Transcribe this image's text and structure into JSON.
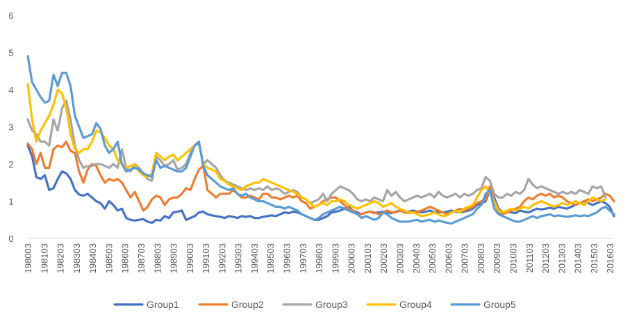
{
  "chart_data": {
    "type": "line",
    "title": "",
    "xlabel": "",
    "ylabel": "",
    "ylim": [
      0,
      6
    ],
    "yticks": [
      0,
      1,
      2,
      3,
      4,
      5,
      6
    ],
    "grid": false,
    "legend_position": "bottom",
    "x_tick_labels": [
      "198003",
      "198103",
      "198203",
      "198303",
      "198403",
      "198503",
      "198603",
      "198703",
      "198803",
      "198903",
      "199003",
      "199103",
      "199203",
      "199303",
      "199403",
      "199503",
      "199603",
      "199703",
      "199803",
      "199903",
      "200003",
      "200103",
      "200203",
      "200303",
      "200403",
      "200503",
      "200603",
      "200703",
      "200803",
      "200903",
      "201003",
      "201103",
      "201203",
      "201303",
      "201403",
      "201503",
      "201603"
    ],
    "series": [
      {
        "name": "Group1",
        "color": "#4472C4",
        "values": [
          2.5,
          2.2,
          1.65,
          1.6,
          1.7,
          1.3,
          1.35,
          1.6,
          1.8,
          1.75,
          1.6,
          1.3,
          1.18,
          1.15,
          1.2,
          1.1,
          1.0,
          0.95,
          0.8,
          1.0,
          0.9,
          0.75,
          0.8,
          0.55,
          0.5,
          0.48,
          0.5,
          0.52,
          0.45,
          0.42,
          0.5,
          0.48,
          0.6,
          0.55,
          0.7,
          0.72,
          0.75,
          0.5,
          0.55,
          0.6,
          0.7,
          0.72,
          0.65,
          0.62,
          0.6,
          0.58,
          0.55,
          0.6,
          0.58,
          0.55,
          0.6,
          0.58,
          0.6,
          0.55,
          0.55,
          0.58,
          0.6,
          0.62,
          0.6,
          0.65,
          0.7,
          0.68,
          0.72,
          0.7,
          0.65,
          0.6,
          0.55,
          0.5,
          0.5,
          0.55,
          0.6,
          0.7,
          0.72,
          0.75,
          0.8,
          0.85,
          0.75,
          0.7,
          0.65,
          0.7,
          0.72,
          0.68,
          0.7,
          0.72,
          0.7,
          0.68,
          0.72,
          0.75,
          0.7,
          0.72,
          0.75,
          0.72,
          0.7,
          0.72,
          0.75,
          0.7,
          0.72,
          0.7,
          0.72,
          0.75,
          0.72,
          0.7,
          0.72,
          0.75,
          0.8,
          0.9,
          0.95,
          1.0,
          1.3,
          1.1,
          0.8,
          0.7,
          0.72,
          0.7,
          0.68,
          0.75,
          0.72,
          0.7,
          0.75,
          0.8,
          0.78,
          0.8,
          0.82,
          0.8,
          0.85,
          0.82,
          0.8,
          0.85,
          0.9,
          0.95,
          1.0,
          0.95,
          0.9,
          0.95,
          1.0,
          0.95,
          0.85,
          0.6
        ]
      },
      {
        "name": "Group2",
        "color": "#ED7D31",
        "values": [
          2.55,
          2.4,
          2.0,
          2.3,
          1.9,
          1.9,
          2.4,
          2.5,
          2.45,
          2.6,
          2.35,
          2.3,
          1.8,
          1.5,
          1.85,
          2.0,
          1.95,
          1.7,
          1.5,
          1.6,
          1.55,
          1.6,
          1.5,
          1.3,
          1.1,
          1.25,
          1.0,
          0.75,
          0.85,
          1.05,
          1.15,
          1.1,
          0.9,
          1.05,
          1.1,
          1.1,
          1.2,
          1.35,
          1.3,
          1.6,
          1.85,
          1.95,
          1.3,
          1.2,
          1.1,
          1.2,
          1.2,
          1.2,
          1.3,
          1.2,
          1.1,
          1.1,
          1.15,
          1.1,
          1.05,
          1.2,
          1.2,
          1.1,
          1.1,
          1.05,
          1.1,
          1.15,
          1.1,
          1.15,
          1.0,
          0.95,
          0.8,
          0.85,
          0.9,
          1.0,
          1.05,
          1.1,
          1.1,
          1.0,
          0.9,
          0.8,
          0.75,
          0.65,
          0.65,
          0.7,
          0.72,
          0.7,
          0.65,
          0.7,
          0.75,
          0.7,
          0.7,
          0.75,
          0.7,
          0.68,
          0.7,
          0.72,
          0.75,
          0.8,
          0.85,
          0.8,
          0.75,
          0.7,
          0.65,
          0.7,
          0.75,
          0.8,
          0.75,
          0.8,
          0.85,
          0.95,
          1.0,
          1.05,
          1.4,
          1.0,
          0.7,
          0.65,
          0.7,
          0.75,
          0.8,
          0.85,
          1.0,
          1.1,
          1.05,
          1.15,
          1.2,
          1.15,
          1.2,
          1.1,
          1.15,
          1.1,
          1.0,
          0.95,
          0.9,
          0.95,
          1.0,
          1.05,
          1.0,
          1.05,
          1.1,
          1.2,
          1.15,
          1.0
        ]
      },
      {
        "name": "Group3",
        "color": "#A5A5A5",
        "values": [
          3.2,
          2.9,
          2.8,
          2.6,
          2.6,
          2.5,
          3.2,
          2.9,
          3.5,
          3.7,
          3.2,
          2.5,
          2.1,
          1.9,
          1.95,
          1.95,
          2.0,
          2.0,
          1.95,
          1.9,
          2.0,
          1.9,
          2.4,
          1.9,
          1.8,
          2.0,
          1.9,
          1.75,
          1.6,
          1.55,
          2.2,
          2.1,
          1.95,
          2.0,
          2.1,
          1.85,
          1.9,
          2.0,
          2.3,
          2.5,
          2.55,
          2.0,
          2.1,
          2.0,
          1.9,
          1.7,
          1.55,
          1.5,
          1.45,
          1.4,
          1.35,
          1.3,
          1.35,
          1.3,
          1.35,
          1.3,
          1.4,
          1.3,
          1.35,
          1.3,
          1.2,
          1.25,
          1.3,
          1.25,
          1.1,
          1.05,
          0.95,
          1.0,
          1.05,
          1.2,
          1.0,
          1.2,
          1.3,
          1.4,
          1.35,
          1.3,
          1.2,
          1.05,
          1.0,
          1.05,
          1.0,
          1.1,
          1.05,
          1.0,
          1.3,
          1.15,
          1.25,
          1.1,
          1.0,
          1.05,
          1.1,
          1.15,
          1.1,
          1.15,
          1.2,
          1.1,
          1.25,
          1.15,
          1.1,
          1.15,
          1.2,
          1.1,
          1.2,
          1.15,
          1.2,
          1.3,
          1.35,
          1.65,
          1.55,
          1.2,
          1.1,
          1.1,
          1.2,
          1.15,
          1.25,
          1.2,
          1.3,
          1.6,
          1.45,
          1.35,
          1.4,
          1.35,
          1.3,
          1.25,
          1.2,
          1.25,
          1.2,
          1.25,
          1.2,
          1.3,
          1.25,
          1.2,
          1.4,
          1.35,
          1.4,
          1.1
        ]
      },
      {
        "name": "Group4",
        "color": "#FFC000",
        "values": [
          4.15,
          3.2,
          2.6,
          2.9,
          3.1,
          3.3,
          3.6,
          4.0,
          3.9,
          3.5,
          2.8,
          2.4,
          2.3,
          2.4,
          2.4,
          2.6,
          2.9,
          2.85,
          2.7,
          2.5,
          2.4,
          2.1,
          2.0,
          1.9,
          1.95,
          2.0,
          1.8,
          1.7,
          1.65,
          1.75,
          2.3,
          2.2,
          2.1,
          2.2,
          2.25,
          2.1,
          2.2,
          2.3,
          2.4,
          2.5,
          2.6,
          2.0,
          1.9,
          1.85,
          1.8,
          1.6,
          1.55,
          1.45,
          1.4,
          1.35,
          1.3,
          1.4,
          1.45,
          1.5,
          1.5,
          1.6,
          1.55,
          1.5,
          1.45,
          1.4,
          1.35,
          1.3,
          1.25,
          1.2,
          1.1,
          1.05,
          0.95,
          0.85,
          0.9,
          0.95,
          0.9,
          1.0,
          1.0,
          1.05,
          1.0,
          0.9,
          0.85,
          0.8,
          0.85,
          0.9,
          0.95,
          1.0,
          0.95,
          0.85,
          0.9,
          0.95,
          0.85,
          0.8,
          0.75,
          0.7,
          0.7,
          0.65,
          0.6,
          0.62,
          0.65,
          0.7,
          0.65,
          0.6,
          0.62,
          0.7,
          0.75,
          0.7,
          0.8,
          0.85,
          0.9,
          1.1,
          1.3,
          1.4,
          1.2,
          1.0,
          0.75,
          0.7,
          0.75,
          0.8,
          0.75,
          0.8,
          0.85,
          0.8,
          0.9,
          0.95,
          1.0,
          0.95,
          0.9,
          0.85,
          0.9,
          0.95,
          0.9,
          0.95,
          1.0,
          0.95,
          0.9,
          1.0,
          1.1,
          1.05,
          1.0,
          1.05
        ]
      },
      {
        "name": "Group5",
        "color": "#5B9BD5",
        "values": [
          4.9,
          4.2,
          4.0,
          3.8,
          3.65,
          3.7,
          4.4,
          4.1,
          4.45,
          4.45,
          4.1,
          3.3,
          3.0,
          2.7,
          2.75,
          2.8,
          3.1,
          2.95,
          2.5,
          2.3,
          2.4,
          2.6,
          2.0,
          1.8,
          1.85,
          1.9,
          1.85,
          1.75,
          1.7,
          1.65,
          2.1,
          1.9,
          1.95,
          1.9,
          1.85,
          1.8,
          1.8,
          1.9,
          2.2,
          2.5,
          2.6,
          1.95,
          1.7,
          1.6,
          1.5,
          1.4,
          1.35,
          1.3,
          1.35,
          1.2,
          1.15,
          1.2,
          1.1,
          1.05,
          1.0,
          1.0,
          0.95,
          0.9,
          0.85,
          0.85,
          0.8,
          0.85,
          0.8,
          0.75,
          0.65,
          0.6,
          0.55,
          0.5,
          0.55,
          0.65,
          0.7,
          0.75,
          0.8,
          0.85,
          0.8,
          0.75,
          0.7,
          0.65,
          0.55,
          0.6,
          0.55,
          0.5,
          0.55,
          0.7,
          0.65,
          0.55,
          0.5,
          0.45,
          0.45,
          0.45,
          0.48,
          0.5,
          0.45,
          0.48,
          0.5,
          0.45,
          0.48,
          0.45,
          0.42,
          0.4,
          0.45,
          0.5,
          0.55,
          0.6,
          0.65,
          0.8,
          0.9,
          1.2,
          1.3,
          0.8,
          0.65,
          0.6,
          0.55,
          0.5,
          0.45,
          0.45,
          0.5,
          0.55,
          0.6,
          0.55,
          0.6,
          0.62,
          0.65,
          0.6,
          0.62,
          0.6,
          0.58,
          0.6,
          0.62,
          0.6,
          0.62,
          0.6,
          0.65,
          0.7,
          0.8,
          0.85,
          0.75,
          0.65
        ]
      }
    ]
  }
}
